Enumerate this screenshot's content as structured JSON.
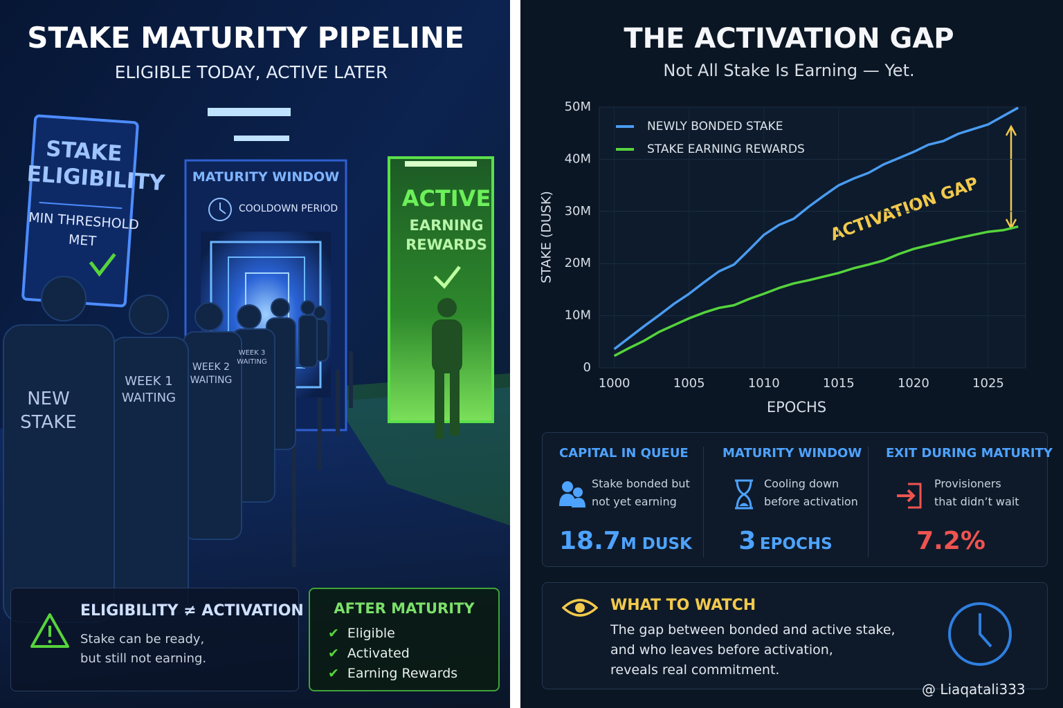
{
  "left": {
    "title": "STAKE MATURITY PIPELINE",
    "subtitle": "ELIGIBLE TODAY, ACTIVE LATER",
    "eligibility_sign": {
      "title_lines": [
        "STAKE",
        "ELIGIBILITY"
      ],
      "status_lines": [
        "MIN THRESHOLD",
        "MET"
      ]
    },
    "maturity_sign": {
      "title": "MATURITY WINDOW",
      "subtitle": "COOLDOWN PERIOD"
    },
    "active_sign": {
      "title": "ACTIVE",
      "lines": [
        "EARNING",
        "REWARDS"
      ]
    },
    "queue_labels": [
      [
        "NEW",
        "STAKE"
      ],
      [
        "WEEK 1",
        "WAITING"
      ],
      [
        "WEEK 2",
        "WAITING"
      ],
      [
        "WEEK 3",
        "WAITING"
      ]
    ],
    "note": {
      "title": "ELIGIBILITY ≠ ACTIVATION",
      "lines": [
        "Stake can be ready,",
        "but still not earning."
      ]
    },
    "after": {
      "title": "AFTER MATURITY",
      "items": [
        "Eligible",
        "Activated",
        "Earning Rewards"
      ]
    }
  },
  "right": {
    "title": "THE ACTIVATION GAP",
    "subtitle": "Not All Stake Is Earning — Yet.",
    "stats": [
      {
        "title": "CAPITAL IN QUEUE",
        "lines": [
          "Stake bonded but",
          "not yet earning"
        ],
        "value": "18.7",
        "unit": "M DUSK"
      },
      {
        "title": "MATURITY WINDOW",
        "lines": [
          "Cooling down",
          "before activation"
        ],
        "value": "3",
        "unit": "EPOCHS"
      },
      {
        "title": "EXIT DURING MATURITY",
        "lines": [
          "Provisioners",
          "that didn’t wait"
        ],
        "value": "7.2%"
      }
    ],
    "watch": {
      "title": "WHAT TO WATCH",
      "lines": [
        "The gap between bonded and active stake,",
        "and who leaves before activation,",
        "reveals real commitment."
      ]
    }
  },
  "chart_data": {
    "type": "line",
    "x_label": "EPOCHS",
    "y_label": "STAKE (DUSK)",
    "annotation": "ACTIVATION GAP",
    "x": [
      1000,
      1001,
      1002,
      1003,
      1004,
      1005,
      1006,
      1007,
      1008,
      1009,
      1010,
      1011,
      1012,
      1013,
      1014,
      1015,
      1016,
      1017,
      1018,
      1019,
      1020,
      1021,
      1022,
      1023,
      1024,
      1025,
      1026,
      1027
    ],
    "series": [
      {
        "name": "NEWLY BONDED STAKE",
        "color": "#4a9bf0",
        "values": [
          3.6,
          5.8,
          8.0,
          10.1,
          12.3,
          14.2,
          16.4,
          18.5,
          19.8,
          22.6,
          25.5,
          27.4,
          28.6,
          30.9,
          33.0,
          35.0,
          36.3,
          37.4,
          39.0,
          40.2,
          41.4,
          42.8,
          43.5,
          44.9,
          45.8,
          46.7,
          48.3,
          49.9
        ]
      },
      {
        "name": "STAKE EARNING REWARDS",
        "color": "#55d43c",
        "values": [
          2.3,
          3.8,
          5.2,
          6.9,
          8.2,
          9.5,
          10.6,
          11.5,
          12.0,
          13.2,
          14.2,
          15.3,
          16.2,
          16.8,
          17.5,
          18.2,
          19.1,
          19.8,
          20.6,
          21.8,
          22.8,
          23.5,
          24.2,
          24.9,
          25.5,
          26.1,
          26.4,
          27.1
        ]
      }
    ],
    "xlim": [
      999,
      1027.5
    ],
    "xticks": [
      1000,
      1005,
      1010,
      1015,
      1020,
      1025
    ],
    "ylim": [
      0,
      50
    ],
    "yticks": [
      0,
      {
        "value": 10,
        "label": "10M"
      },
      {
        "value": 20,
        "label": "20M"
      },
      {
        "value": 30,
        "label": "30M"
      },
      {
        "value": 40,
        "label": "40M"
      },
      {
        "value": 50,
        "label": "50M"
      }
    ],
    "grid": true,
    "legend": "upper left"
  },
  "watermark": "@ Liaqatali333"
}
